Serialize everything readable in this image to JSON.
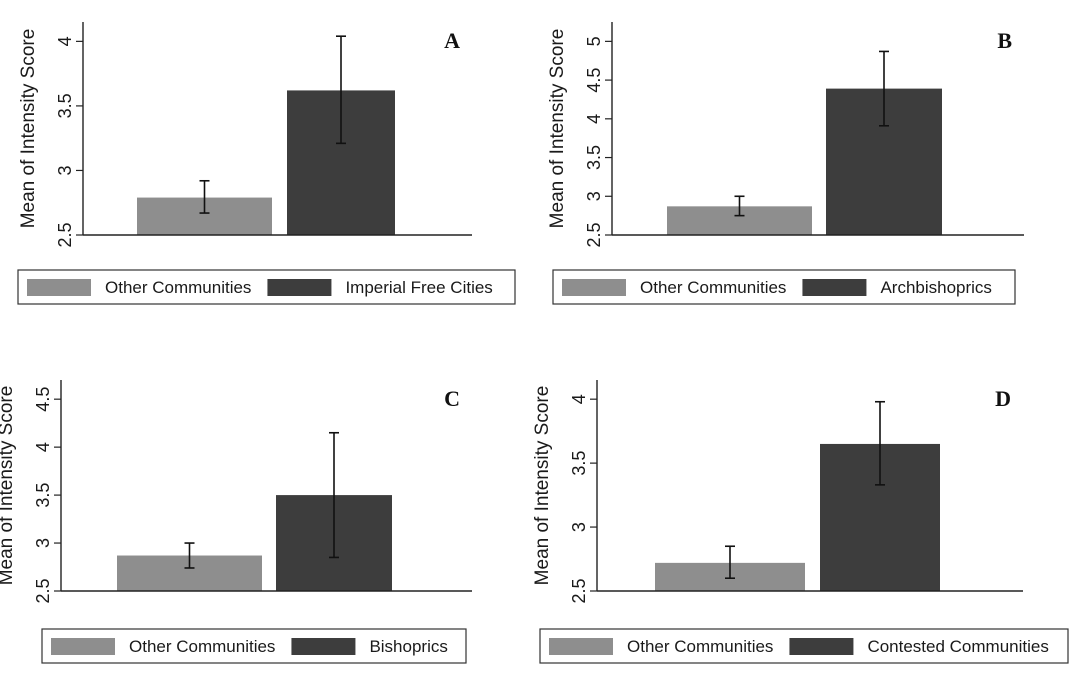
{
  "colors": {
    "other": "#8e8e8e",
    "highlight": "#3d3d3d"
  },
  "chart_data": [
    {
      "type": "bar",
      "panel": "A",
      "ylabel": "Mean of Intensity Score",
      "ylim": [
        2.5,
        4.15
      ],
      "yticks": [
        2.5,
        3,
        3.5,
        4
      ],
      "categories": [
        "Other Communities",
        "Imperial Free Cities"
      ],
      "values": [
        2.79,
        3.62
      ],
      "ci_low": [
        2.67,
        3.21
      ],
      "ci_high": [
        2.92,
        4.04
      ],
      "legend": [
        "Other Communities",
        "Imperial Free Cities"
      ]
    },
    {
      "type": "bar",
      "panel": "B",
      "ylabel": "Mean of Intensity Score",
      "ylim": [
        2.5,
        5.25
      ],
      "yticks": [
        2.5,
        3,
        3.5,
        4,
        4.5,
        5
      ],
      "categories": [
        "Other Communities",
        "Archbishoprics"
      ],
      "values": [
        2.87,
        4.39
      ],
      "ci_low": [
        2.75,
        3.91
      ],
      "ci_high": [
        3.0,
        4.87
      ],
      "legend": [
        "Other Communities",
        "Archbishoprics"
      ]
    },
    {
      "type": "bar",
      "panel": "C",
      "ylabel": "Mean of Intensity Score",
      "ylim": [
        2.5,
        4.7
      ],
      "yticks": [
        2.5,
        3,
        3.5,
        4,
        4.5
      ],
      "categories": [
        "Other Communities",
        "Bishoprics"
      ],
      "values": [
        2.87,
        3.5
      ],
      "ci_low": [
        2.74,
        2.85
      ],
      "ci_high": [
        3.0,
        4.15
      ],
      "legend": [
        "Other Communities",
        "Bishoprics"
      ]
    },
    {
      "type": "bar",
      "panel": "D",
      "ylabel": "Mean of Intensity Score",
      "ylim": [
        2.5,
        4.15
      ],
      "yticks": [
        2.5,
        3,
        3.5,
        4
      ],
      "categories": [
        "Other Communities",
        "Contested Communities"
      ],
      "values": [
        2.72,
        3.65
      ],
      "ci_low": [
        2.6,
        3.33
      ],
      "ci_high": [
        2.85,
        3.98
      ],
      "legend": [
        "Other Communities",
        "Contested Communities"
      ]
    }
  ]
}
